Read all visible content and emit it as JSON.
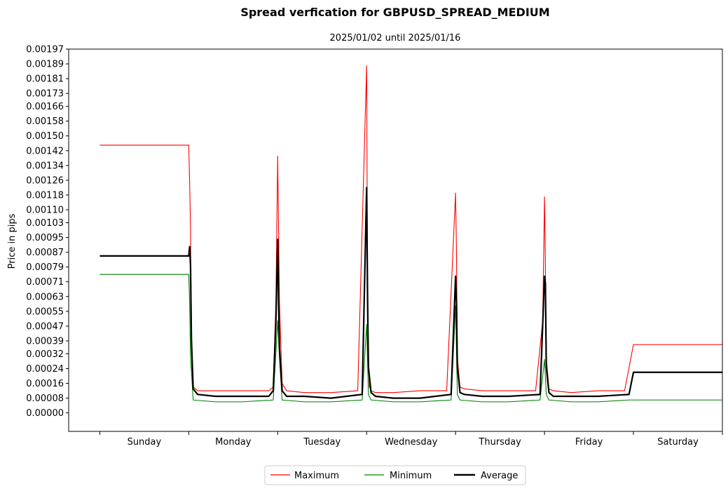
{
  "chart_data": {
    "type": "line",
    "title": "Spread verfication for GBPUSD_SPREAD_MEDIUM",
    "subtitle": "2025/01/02 until 2025/01/16",
    "ylabel": "Price in pips",
    "xlabel": "",
    "ylim": [
      -0.0001,
      0.00197
    ],
    "xlim": [
      -0.35,
      7.0
    ],
    "grid": false,
    "legend_position": "bottom-center",
    "y_ticks": [
      "0.00000",
      "0.00008",
      "0.00016",
      "0.00024",
      "0.00032",
      "0.00039",
      "0.00047",
      "0.00055",
      "0.00063",
      "0.00071",
      "0.00079",
      "0.00087",
      "0.00095",
      "0.00103",
      "0.00110",
      "0.00118",
      "0.00126",
      "0.00134",
      "0.00142",
      "0.00150",
      "0.00158",
      "0.00166",
      "0.00173",
      "0.00181",
      "0.00189",
      "0.00197"
    ],
    "categories": [
      "Sunday",
      "Monday",
      "Tuesday",
      "Wednesday",
      "Thursday",
      "Friday",
      "Saturday"
    ],
    "x_unit": "days from Sunday start",
    "series": [
      {
        "name": "Maximum",
        "color": "#ff0000",
        "x": [
          0,
          1.0,
          1.01,
          1.02,
          1.03,
          1.05,
          1.1,
          1.3,
          1.6,
          1.9,
          1.95,
          1.98,
          2.0,
          2.01,
          2.02,
          2.05,
          2.1,
          2.3,
          2.6,
          2.9,
          3.0,
          3.01,
          3.02,
          3.03,
          3.05,
          3.1,
          3.3,
          3.6,
          3.9,
          4.0,
          4.01,
          4.02,
          4.05,
          4.1,
          4.3,
          4.6,
          4.9,
          4.98,
          5.0,
          5.01,
          5.02,
          5.05,
          5.1,
          5.3,
          5.6,
          5.9,
          6.0,
          7.0
        ],
        "values": [
          0.00145,
          0.00145,
          0.00125,
          0.001,
          0.0004,
          0.00014,
          0.00012,
          0.00012,
          0.00012,
          0.00012,
          0.00014,
          0.0006,
          0.00139,
          0.001,
          0.0006,
          0.00016,
          0.00012,
          0.00011,
          0.00011,
          0.00012,
          0.00188,
          0.00075,
          0.0003,
          0.00014,
          0.00012,
          0.00011,
          0.00011,
          0.00012,
          0.00012,
          0.00119,
          0.00088,
          0.0003,
          0.00014,
          0.00013,
          0.00012,
          0.00012,
          0.00012,
          0.0005,
          0.00117,
          0.0008,
          0.0003,
          0.00013,
          0.00012,
          0.00011,
          0.00012,
          0.00012,
          0.00037,
          0.00037
        ]
      },
      {
        "name": "Minimum",
        "color": "#008000",
        "x": [
          0,
          1.0,
          1.01,
          1.02,
          1.05,
          1.3,
          1.6,
          1.95,
          2.0,
          2.02,
          2.05,
          2.3,
          2.6,
          2.95,
          3.0,
          3.02,
          3.05,
          3.3,
          3.6,
          3.95,
          4.0,
          4.02,
          4.05,
          4.3,
          4.6,
          4.95,
          5.0,
          5.02,
          5.05,
          5.3,
          5.6,
          5.95,
          6.0,
          7.0
        ],
        "values": [
          0.00075,
          0.00075,
          0.0006,
          0.0003,
          7e-05,
          6e-05,
          6e-05,
          7e-05,
          0.0005,
          0.0003,
          7e-05,
          6e-05,
          6e-05,
          7e-05,
          0.00048,
          0.0001,
          7e-05,
          6e-05,
          6e-05,
          7e-05,
          0.00058,
          0.0001,
          7e-05,
          6e-05,
          6e-05,
          7e-05,
          0.00029,
          0.0001,
          7e-05,
          6e-05,
          6e-05,
          7e-05,
          7e-05,
          7e-05
        ]
      },
      {
        "name": "Average",
        "color": "#000000",
        "x": [
          0,
          1.0,
          1.01,
          1.02,
          1.03,
          1.05,
          1.1,
          1.3,
          1.6,
          1.9,
          1.95,
          1.98,
          2.0,
          2.01,
          2.02,
          2.05,
          2.1,
          2.3,
          2.6,
          2.95,
          3.0,
          3.01,
          3.02,
          3.05,
          3.1,
          3.3,
          3.6,
          3.95,
          4.0,
          4.01,
          4.02,
          4.05,
          4.1,
          4.3,
          4.6,
          4.95,
          5.0,
          5.01,
          5.02,
          5.05,
          5.1,
          5.3,
          5.6,
          5.95,
          6.0,
          7.0
        ],
        "values": [
          0.00085,
          0.00085,
          0.0009,
          0.0008,
          0.0004,
          0.00013,
          0.0001,
          9e-05,
          9e-05,
          9e-05,
          0.00012,
          0.0005,
          0.00094,
          0.0006,
          0.00035,
          0.00012,
          9e-05,
          9e-05,
          8e-05,
          0.0001,
          0.00122,
          0.00065,
          0.00025,
          0.00011,
          9e-05,
          8e-05,
          8e-05,
          0.0001,
          0.00074,
          0.0006,
          0.00025,
          0.00011,
          0.0001,
          9e-05,
          9e-05,
          0.0001,
          0.00074,
          0.0007,
          0.00025,
          0.00011,
          9e-05,
          9e-05,
          9e-05,
          0.0001,
          0.00022,
          0.00022
        ]
      }
    ]
  }
}
